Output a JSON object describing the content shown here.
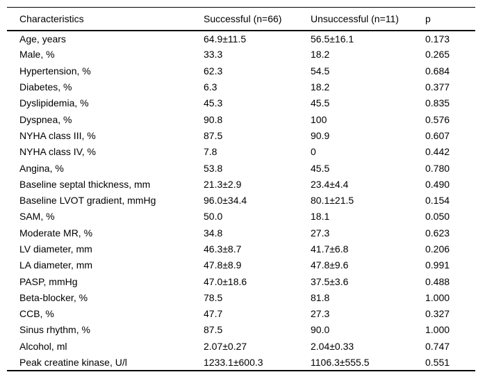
{
  "colors": {
    "background": "#ffffff",
    "text": "#000000",
    "rule": "#000000"
  },
  "table": {
    "columns": [
      "Characteristics",
      "Successful (n=66)",
      "Unsuccessful (n=11)",
      "p"
    ],
    "rows": [
      [
        "Age, years",
        "64.9±11.5",
        "56.5±16.1",
        "0.173"
      ],
      [
        "Male, %",
        "33.3",
        "18.2",
        "0.265"
      ],
      [
        "Hypertension, %",
        "62.3",
        "54.5",
        "0.684"
      ],
      [
        "Diabetes, %",
        "6.3",
        "18.2",
        "0.377"
      ],
      [
        "Dyslipidemia, %",
        "45.3",
        "45.5",
        "0.835"
      ],
      [
        "Dyspnea, %",
        "90.8",
        "100",
        "0.576"
      ],
      [
        "NYHA class III, %",
        "87.5",
        "90.9",
        "0.607"
      ],
      [
        "NYHA class IV, %",
        "7.8",
        "0",
        "0.442"
      ],
      [
        "Angina, %",
        "53.8",
        "45.5",
        "0.780"
      ],
      [
        "Baseline septal thickness, mm",
        "21.3±2.9",
        "23.4±4.4",
        "0.490"
      ],
      [
        "Baseline LVOT gradient, mmHg",
        "96.0±34.4",
        "80.1±21.5",
        "0.154"
      ],
      [
        "SAM, %",
        "50.0",
        "18.1",
        "0.050"
      ],
      [
        "Moderate MR, %",
        "34.8",
        "27.3",
        "0.623"
      ],
      [
        "LV diameter, mm",
        "46.3±8.7",
        "41.7±6.8",
        "0.206"
      ],
      [
        "LA diameter, mm",
        "47.8±8.9",
        "47.8±9.6",
        "0.991"
      ],
      [
        "PASP, mmHg",
        "47.0±18.6",
        "37.5±3.6",
        "0.488"
      ],
      [
        "Beta-blocker, %",
        "78.5",
        "81.8",
        "1.000"
      ],
      [
        "CCB, %",
        "47.7",
        "27.3",
        "0.327"
      ],
      [
        "Sinus rhythm, %",
        "87.5",
        "90.0",
        "1.000"
      ],
      [
        "Alcohol, ml",
        "2.07±0.27",
        "2.04±0.33",
        "0.747"
      ],
      [
        "Peak creatine kinase, U/l",
        "1233.1±600.3",
        "1106.3±555.5",
        "0.551"
      ]
    ]
  }
}
